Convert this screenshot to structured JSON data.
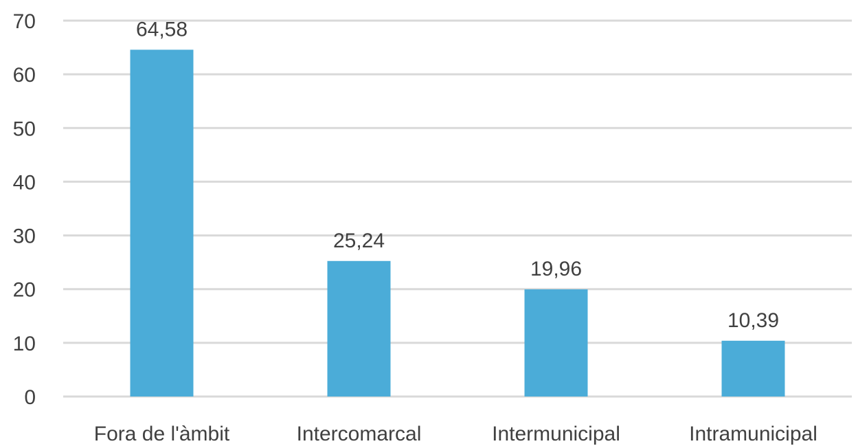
{
  "chart_data": {
    "type": "bar",
    "categories": [
      "Fora de l'àmbit",
      "Intercomarcal",
      "Intermunicipal",
      "Intramunicipal"
    ],
    "values": [
      64.58,
      25.24,
      19.96,
      10.39
    ],
    "data_labels": [
      "64,58",
      "25,24",
      "19,96",
      "10,39"
    ],
    "title": "",
    "xlabel": "",
    "ylabel": "",
    "ylim": [
      0,
      70
    ],
    "yticks": [
      0,
      10,
      20,
      30,
      40,
      50,
      60,
      70
    ],
    "ytick_labels": [
      "0",
      "10",
      "20",
      "30",
      "40",
      "50",
      "60",
      "70"
    ],
    "grid": true,
    "legend": "none",
    "bar_color": "#4bacd8"
  }
}
